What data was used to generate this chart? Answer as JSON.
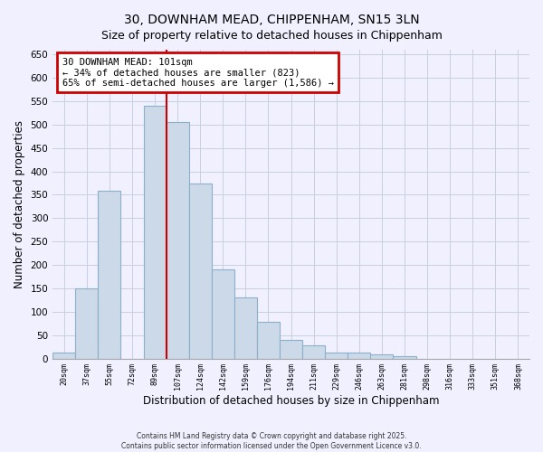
{
  "title": "30, DOWNHAM MEAD, CHIPPENHAM, SN15 3LN",
  "subtitle": "Size of property relative to detached houses in Chippenham",
  "xlabel": "Distribution of detached houses by size in Chippenham",
  "ylabel": "Number of detached properties",
  "categories": [
    "20sqm",
    "37sqm",
    "55sqm",
    "72sqm",
    "89sqm",
    "107sqm",
    "124sqm",
    "142sqm",
    "159sqm",
    "176sqm",
    "194sqm",
    "211sqm",
    "229sqm",
    "246sqm",
    "263sqm",
    "281sqm",
    "298sqm",
    "316sqm",
    "333sqm",
    "351sqm",
    "368sqm"
  ],
  "values": [
    13,
    150,
    358,
    0,
    540,
    505,
    375,
    190,
    130,
    78,
    40,
    28,
    13,
    13,
    9,
    5,
    0,
    0,
    0,
    0,
    0
  ],
  "bar_color": "#ccd9e8",
  "bar_edge_color": "#8ab0cc",
  "annotation_line_label": "30 DOWNHAM MEAD: 101sqm",
  "annotation_text1": "← 34% of detached houses are smaller (823)",
  "annotation_text2": "65% of semi-detached houses are larger (1,586) →",
  "annotation_box_color": "#ffffff",
  "annotation_box_edge": "#cc0000",
  "annotation_line_color": "#cc0000",
  "ylim": [
    0,
    660
  ],
  "yticks": [
    0,
    50,
    100,
    150,
    200,
    250,
    300,
    350,
    400,
    450,
    500,
    550,
    600,
    650
  ],
  "footnote1": "Contains HM Land Registry data © Crown copyright and database right 2025.",
  "footnote2": "Contains public sector information licensed under the Open Government Licence v3.0.",
  "background_color": "#f0f0ff",
  "grid_color": "#c8d0e0",
  "title_fontsize": 10,
  "subtitle_fontsize": 9
}
